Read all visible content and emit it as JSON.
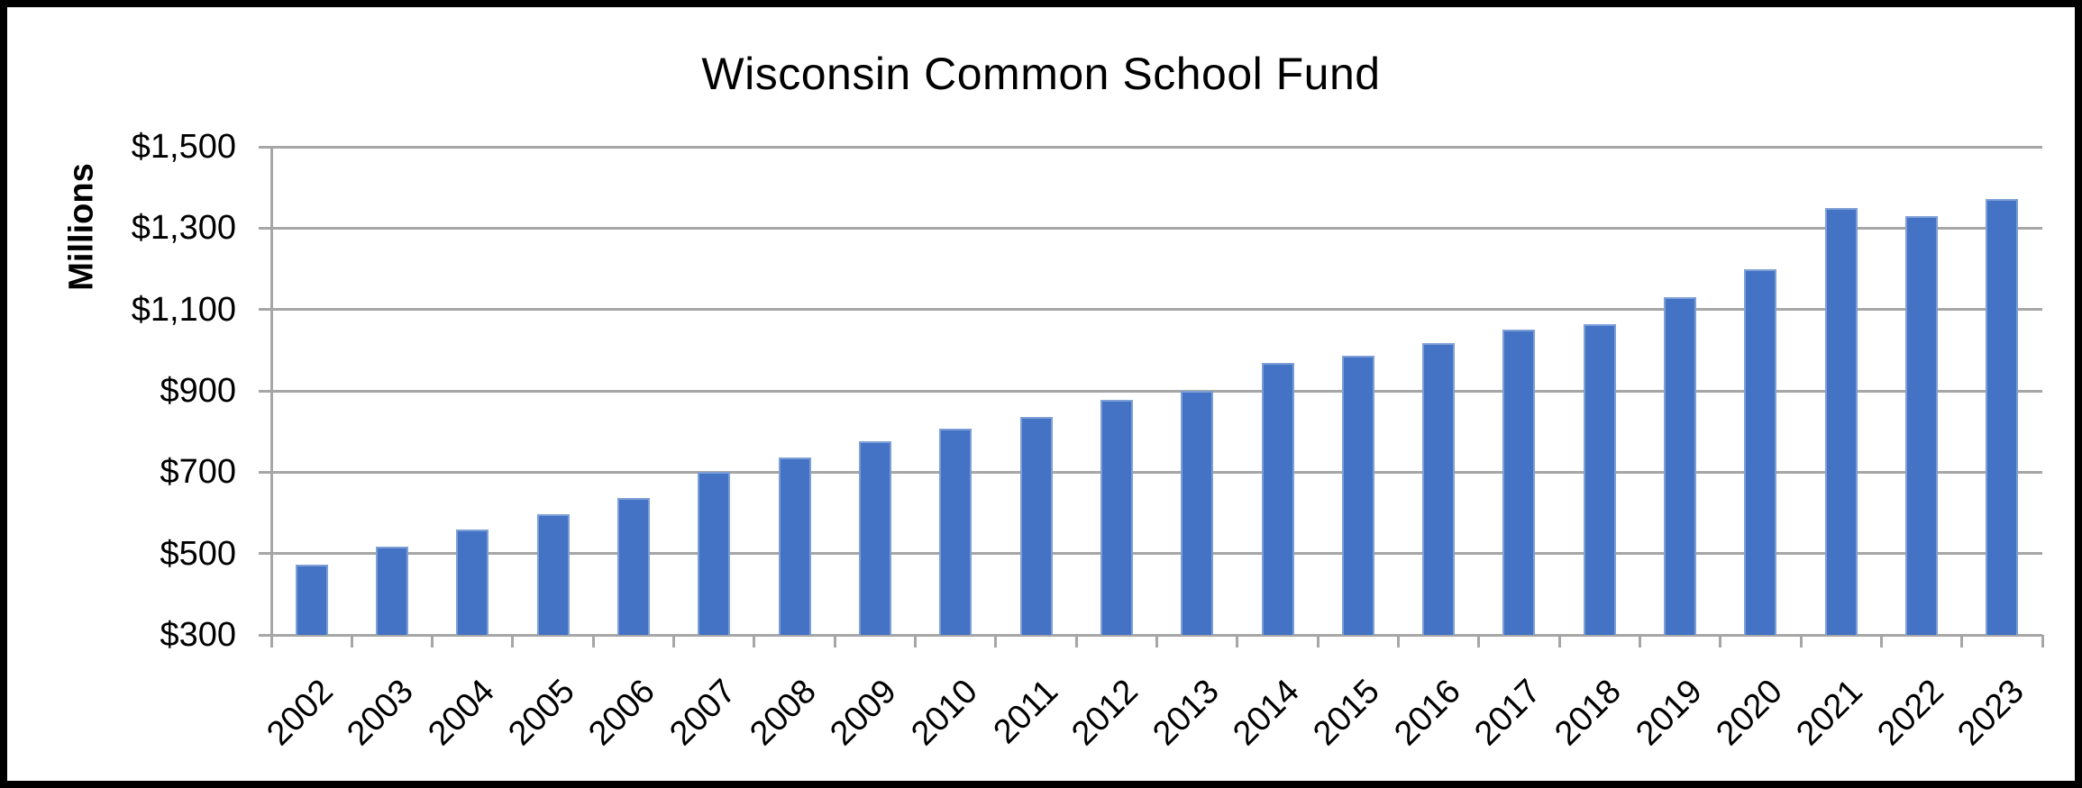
{
  "chart_data": {
    "type": "bar",
    "title": "Wisconsin Common School Fund",
    "xlabel": "",
    "ylabel": "Millions",
    "categories": [
      "2002",
      "2003",
      "2004",
      "2005",
      "2006",
      "2007",
      "2008",
      "2009",
      "2010",
      "2011",
      "2012",
      "2013",
      "2014",
      "2015",
      "2016",
      "2017",
      "2018",
      "2019",
      "2020",
      "2021",
      "2022",
      "2023"
    ],
    "values": [
      473,
      516,
      558,
      596,
      636,
      701,
      737,
      775,
      807,
      835,
      877,
      900,
      969,
      986,
      1017,
      1050,
      1063,
      1131,
      1200,
      1349,
      1329,
      1372
    ],
    "ylim": [
      300,
      1500
    ],
    "ytick_step": 200,
    "ytick_values": [
      300,
      500,
      700,
      900,
      1100,
      1300,
      1500
    ],
    "ytick_labels": [
      "$300",
      "$500",
      "$700",
      "$900",
      "$1,100",
      "$1,300",
      "$1,500"
    ],
    "grid": true,
    "legend": "none",
    "x_label_rotation_deg": -45,
    "colors": {
      "bar": "#4472C4",
      "bar_edge": "#7D9FD6",
      "gridline": "#A6A6A6",
      "axis": "#A6A6A6",
      "text": "#000000",
      "frame_border": "#000000",
      "background": "#FFFFFF"
    }
  }
}
